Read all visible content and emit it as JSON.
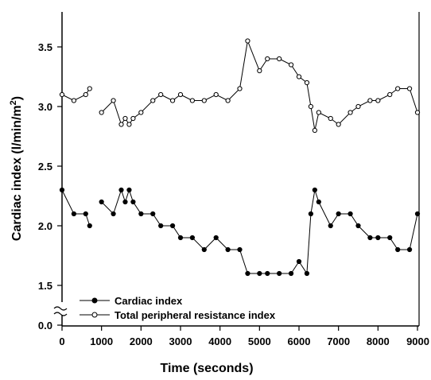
{
  "chart_data": {
    "type": "line",
    "title": "",
    "xlabel": "Time (seconds)",
    "ylabel": "Cardiac index (l/min/m²)",
    "ylabel_main": "Cardiac index (l/min/m",
    "ylabel_sup": "2",
    "ylabel_tail": ")",
    "xlim": [
      0,
      9000
    ],
    "ylim": [
      1.3,
      3.8
    ],
    "axis_break": true,
    "x_ticks": [
      0,
      1000,
      2000,
      3000,
      4000,
      5000,
      6000,
      7000,
      8000,
      9000
    ],
    "x_tick_labels": [
      "0",
      "1000",
      "2000",
      "3000",
      "4000",
      "5000",
      "6000",
      "7000",
      "8000",
      "9000"
    ],
    "y_ticks": [
      1.5,
      2.0,
      2.5,
      3.0,
      3.5
    ],
    "y_tick_labels": [
      "1.5",
      "2.0",
      "2.5",
      "3.0",
      "3.5"
    ],
    "y_zero_label": "0.0",
    "grid": false,
    "legend_position": "bottom-left",
    "series": [
      {
        "name": "Cardiac index",
        "marker": "filled-circle",
        "x": [
          0,
          300,
          600,
          700,
          1000,
          1300,
          1500,
          1600,
          1700,
          1800,
          2000,
          2300,
          2500,
          2800,
          3000,
          3300,
          3600,
          3900,
          4200,
          4500,
          4700,
          5000,
          5200,
          5500,
          5800,
          6000,
          6200,
          6300,
          6400,
          6500,
          6800,
          7000,
          7300,
          7500,
          7800,
          8000,
          8300,
          8500,
          8800,
          9000
        ],
        "values": [
          2.3,
          2.1,
          2.1,
          2.0,
          2.2,
          2.1,
          2.3,
          2.2,
          2.3,
          2.2,
          2.1,
          2.1,
          2.0,
          2.0,
          1.9,
          1.9,
          1.8,
          1.9,
          1.8,
          1.8,
          1.6,
          1.6,
          1.6,
          1.6,
          1.6,
          1.7,
          1.6,
          2.1,
          2.3,
          2.2,
          2.0,
          2.1,
          2.1,
          2.0,
          1.9,
          1.9,
          1.9,
          1.8,
          1.8,
          2.1
        ]
      },
      {
        "name": "Total peripheral resistance index",
        "marker": "open-circle",
        "x": [
          0,
          300,
          600,
          700,
          1000,
          1300,
          1500,
          1600,
          1700,
          1800,
          2000,
          2300,
          2500,
          2800,
          3000,
          3300,
          3600,
          3900,
          4200,
          4500,
          4700,
          5000,
          5200,
          5500,
          5800,
          6000,
          6200,
          6300,
          6400,
          6500,
          6800,
          7000,
          7300,
          7500,
          7800,
          8000,
          8300,
          8500,
          8800,
          9000
        ],
        "values": [
          3.1,
          3.05,
          3.1,
          3.15,
          2.95,
          3.05,
          2.85,
          2.9,
          2.85,
          2.9,
          2.95,
          3.05,
          3.1,
          3.05,
          3.1,
          3.05,
          3.05,
          3.1,
          3.05,
          3.15,
          3.55,
          3.3,
          3.4,
          3.4,
          3.35,
          3.25,
          3.2,
          3.0,
          2.8,
          2.95,
          2.9,
          2.85,
          2.95,
          3.0,
          3.05,
          3.05,
          3.1,
          3.15,
          3.15,
          2.95
        ]
      }
    ]
  }
}
